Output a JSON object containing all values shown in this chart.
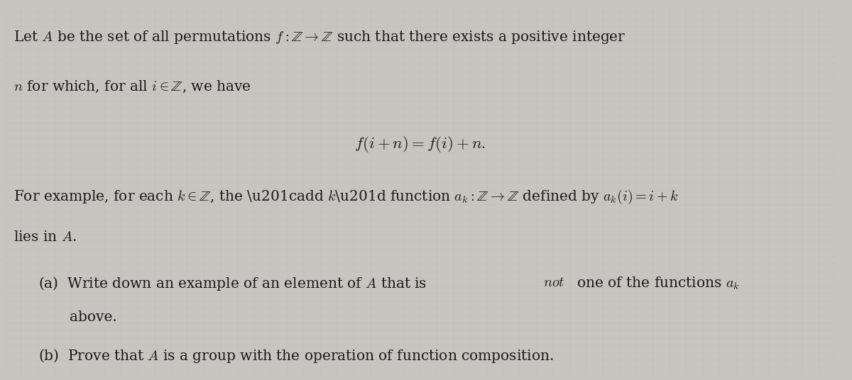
{
  "background_color": "#c8c4c0",
  "figsize": [
    12.0,
    5.36
  ],
  "dpi": 100,
  "text_color": "#1a1a1a",
  "fs": 14.5
}
